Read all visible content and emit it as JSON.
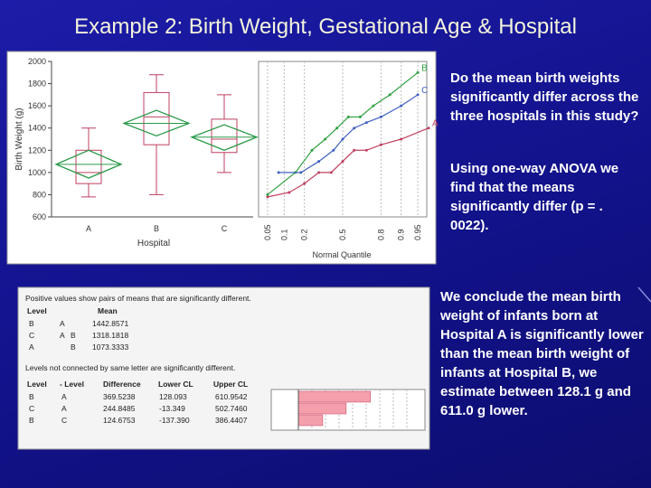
{
  "title": "Example 2: Birth Weight, Gestational Age & Hospital",
  "chart": {
    "y_label": "Birth Weight (g)",
    "x_label": "Hospital",
    "quantile_label": "Normal Quantile",
    "ylim": [
      600,
      2000
    ],
    "yticks": [
      600,
      800,
      1000,
      1200,
      1400,
      1600,
      1800,
      2000
    ],
    "categories": [
      "A",
      "B",
      "C"
    ],
    "box_color": "#c04060",
    "diamond_color": "#2a9a4a",
    "boxes": [
      {
        "min": 780,
        "q1": 900,
        "median": 1000,
        "q3": 1200,
        "max": 1400,
        "mean": 1073.3333,
        "ci": [
          950,
          1200
        ]
      },
      {
        "min": 800,
        "q1": 1250,
        "median": 1500,
        "q3": 1720,
        "max": 1880,
        "mean": 1442.8571,
        "ci": [
          1330,
          1560
        ]
      },
      {
        "min": 1000,
        "q1": 1180,
        "median": 1300,
        "q3": 1480,
        "max": 1700,
        "mean": 1318.1818,
        "ci": [
          1200,
          1430
        ]
      }
    ],
    "quantile_ticks": [
      0.05,
      0.1,
      0.2,
      0.5,
      0.8,
      0.9,
      0.95
    ],
    "quantile_series": [
      {
        "name": "A",
        "color": "#c04060",
        "x": [
          0.05,
          0.12,
          0.2,
          0.3,
          0.4,
          0.5,
          0.6,
          0.7,
          0.8,
          0.9,
          0.97
        ],
        "values": [
          780,
          820,
          900,
          1000,
          1000,
          1100,
          1200,
          1200,
          1250,
          1300,
          1400
        ]
      },
      {
        "name": "B",
        "color": "#30a040",
        "x": [
          0.05,
          0.15,
          0.25,
          0.35,
          0.45,
          0.55,
          0.65,
          0.75,
          0.85,
          0.95
        ],
        "values": [
          800,
          1000,
          1200,
          1300,
          1400,
          1500,
          1500,
          1600,
          1700,
          1900
        ]
      },
      {
        "name": "C",
        "color": "#4060c0",
        "x": [
          0.08,
          0.18,
          0.3,
          0.42,
          0.5,
          0.6,
          0.7,
          0.8,
          0.9,
          0.95
        ],
        "values": [
          1000,
          1000,
          1100,
          1200,
          1300,
          1400,
          1450,
          1500,
          1600,
          1700
        ]
      }
    ]
  },
  "paragraphs": [
    "Do the mean birth weights significantly differ across the three hospitals in this study?",
    "Using one-way ANOVA we find that the means significantly differ (p = . 0022).",
    "We conclude the mean birth weight of infants born at Hospital A is significantly lower than the mean birth weight of infants at Hospital B, we estimate between 128.1 g and 611.0 g lower."
  ],
  "report": {
    "note": "Positive values show pairs of means that are significantly different.",
    "means_header": [
      "Level",
      "Mean"
    ],
    "means_rows": [
      {
        "level": "B",
        "letters": [
          "A"
        ],
        "mean": "1442.8571"
      },
      {
        "level": "C",
        "letters": [
          "A",
          "B"
        ],
        "mean": "1318.1818"
      },
      {
        "level": "A",
        "letters": [
          "B"
        ],
        "mean": "1073.3333"
      }
    ],
    "footnote": "Levels not connected by same letter are significantly different.",
    "diff_header": [
      "Level",
      "- Level",
      "Difference",
      "Lower CL",
      "Upper CL"
    ],
    "diff_rows": [
      [
        "B",
        "A",
        "369.5238",
        "128.093",
        "610.9542"
      ],
      [
        "C",
        "A",
        "244.8485",
        "-13.349",
        "502.7460"
      ],
      [
        "B",
        "C",
        "124.6753",
        "-137.390",
        "386.4407"
      ]
    ]
  }
}
